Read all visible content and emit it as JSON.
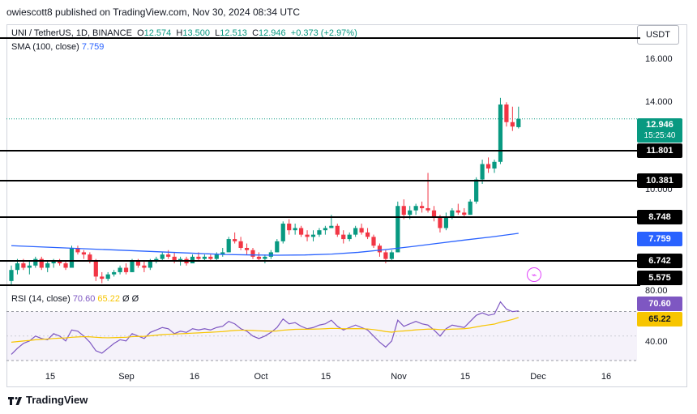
{
  "header": {
    "text": "owiescott8 published on TradingView.com, Nov 30, 2024 08:34 UTC"
  },
  "symbol": {
    "name": "UNI / TetherUS, 1D, BINANCE",
    "open_label": "O",
    "open": "12.574",
    "high_label": "H",
    "high": "13.500",
    "low_label": "L",
    "low": "12.513",
    "close_label": "C",
    "close": "12.946",
    "change": "+0.373 (+2.97%)"
  },
  "sma": {
    "label": "SMA (100, close)",
    "value": "7.759"
  },
  "rsi": {
    "label": "RSI (14, close)",
    "value": "70.60",
    "signal": "65.22",
    "extra1": "Ø",
    "extra2": "Ø"
  },
  "currency": "USDT",
  "footer": {
    "brand": "TradingView"
  },
  "price_axis": [
    "16.000",
    "14.000",
    "10.000"
  ],
  "rsi_axis": [
    "80.00",
    "40.00"
  ],
  "levels": {
    "l11801": "11.801",
    "l10381": "10.381",
    "l8748": "8.748",
    "l6742": "6.742",
    "l5575": "5.575",
    "sma_tag": "7.759",
    "price_tag": "12.946",
    "countdown": "15:25:40",
    "rsi_tag": "70.60",
    "rsi_sig_tag": "65.22"
  },
  "x_axis": [
    "15",
    "Sep",
    "16",
    "Oct",
    "15",
    "Nov",
    "15",
    "Dec",
    "16"
  ],
  "colors": {
    "up": "#089981",
    "down": "#f23645",
    "sma": "#2962ff",
    "rsi": "#7e57c2",
    "rsi_ma": "#f7c500"
  },
  "chart_data": {
    "type": "candlestick",
    "title": "UNI / TetherUS, 1D, BINANCE",
    "price_range": [
      5.3,
      16.5
    ],
    "horizontal_levels": [
      11.801,
      10.381,
      8.748,
      6.742,
      5.575
    ],
    "candles": [
      {
        "o": 5.6,
        "h": 6.3,
        "l": 5.4,
        "c": 6.1
      },
      {
        "o": 6.1,
        "h": 6.6,
        "l": 5.9,
        "c": 6.4
      },
      {
        "o": 6.4,
        "h": 6.6,
        "l": 6.1,
        "c": 6.2
      },
      {
        "o": 6.2,
        "h": 6.5,
        "l": 5.9,
        "c": 6.3
      },
      {
        "o": 6.3,
        "h": 6.7,
        "l": 6.2,
        "c": 6.6
      },
      {
        "o": 6.6,
        "h": 6.7,
        "l": 6.1,
        "c": 6.2
      },
      {
        "o": 6.2,
        "h": 6.5,
        "l": 6.0,
        "c": 6.4
      },
      {
        "o": 6.4,
        "h": 6.6,
        "l": 6.2,
        "c": 6.5
      },
      {
        "o": 6.5,
        "h": 6.6,
        "l": 6.3,
        "c": 6.4
      },
      {
        "o": 6.4,
        "h": 6.5,
        "l": 6.1,
        "c": 6.2
      },
      {
        "o": 6.2,
        "h": 7.2,
        "l": 6.2,
        "c": 7.1
      },
      {
        "o": 7.1,
        "h": 7.2,
        "l": 6.8,
        "c": 6.9
      },
      {
        "o": 6.9,
        "h": 7.0,
        "l": 6.6,
        "c": 6.8
      },
      {
        "o": 6.8,
        "h": 6.9,
        "l": 6.4,
        "c": 6.5
      },
      {
        "o": 6.5,
        "h": 6.6,
        "l": 5.6,
        "c": 5.8
      },
      {
        "o": 5.8,
        "h": 6.0,
        "l": 5.5,
        "c": 5.7
      },
      {
        "o": 5.7,
        "h": 6.0,
        "l": 5.6,
        "c": 5.9
      },
      {
        "o": 5.9,
        "h": 6.1,
        "l": 5.8,
        "c": 6.0
      },
      {
        "o": 6.0,
        "h": 6.3,
        "l": 5.9,
        "c": 6.2
      },
      {
        "o": 6.2,
        "h": 6.4,
        "l": 5.9,
        "c": 6.0
      },
      {
        "o": 6.0,
        "h": 6.6,
        "l": 6.0,
        "c": 6.5
      },
      {
        "o": 6.5,
        "h": 6.6,
        "l": 6.2,
        "c": 6.3
      },
      {
        "o": 6.3,
        "h": 6.5,
        "l": 6.0,
        "c": 6.2
      },
      {
        "o": 6.2,
        "h": 6.6,
        "l": 6.1,
        "c": 6.5
      },
      {
        "o": 6.5,
        "h": 6.7,
        "l": 6.4,
        "c": 6.6
      },
      {
        "o": 6.6,
        "h": 6.9,
        "l": 6.5,
        "c": 6.8
      },
      {
        "o": 6.8,
        "h": 7.0,
        "l": 6.6,
        "c": 6.7
      },
      {
        "o": 6.7,
        "h": 6.9,
        "l": 6.4,
        "c": 6.5
      },
      {
        "o": 6.5,
        "h": 6.7,
        "l": 6.3,
        "c": 6.6
      },
      {
        "o": 6.6,
        "h": 6.7,
        "l": 6.3,
        "c": 6.4
      },
      {
        "o": 6.4,
        "h": 6.8,
        "l": 6.4,
        "c": 6.7
      },
      {
        "o": 6.7,
        "h": 6.9,
        "l": 6.5,
        "c": 6.6
      },
      {
        "o": 6.6,
        "h": 6.8,
        "l": 6.5,
        "c": 6.7
      },
      {
        "o": 6.7,
        "h": 6.8,
        "l": 6.5,
        "c": 6.6
      },
      {
        "o": 6.6,
        "h": 6.9,
        "l": 6.5,
        "c": 6.8
      },
      {
        "o": 6.8,
        "h": 7.1,
        "l": 6.7,
        "c": 6.9
      },
      {
        "o": 6.9,
        "h": 7.6,
        "l": 6.9,
        "c": 7.5
      },
      {
        "o": 7.5,
        "h": 7.8,
        "l": 7.3,
        "c": 7.4
      },
      {
        "o": 7.4,
        "h": 7.6,
        "l": 7.0,
        "c": 7.1
      },
      {
        "o": 7.1,
        "h": 7.3,
        "l": 6.8,
        "c": 7.0
      },
      {
        "o": 7.0,
        "h": 7.1,
        "l": 6.6,
        "c": 6.7
      },
      {
        "o": 6.7,
        "h": 6.9,
        "l": 6.5,
        "c": 6.6
      },
      {
        "o": 6.6,
        "h": 6.8,
        "l": 6.4,
        "c": 6.7
      },
      {
        "o": 6.7,
        "h": 7.0,
        "l": 6.6,
        "c": 6.9
      },
      {
        "o": 6.9,
        "h": 7.5,
        "l": 6.9,
        "c": 7.4
      },
      {
        "o": 7.4,
        "h": 8.3,
        "l": 7.3,
        "c": 8.2
      },
      {
        "o": 8.2,
        "h": 8.4,
        "l": 7.7,
        "c": 7.9
      },
      {
        "o": 7.9,
        "h": 8.2,
        "l": 7.7,
        "c": 8.0
      },
      {
        "o": 8.0,
        "h": 8.1,
        "l": 7.6,
        "c": 7.7
      },
      {
        "o": 7.7,
        "h": 7.9,
        "l": 7.4,
        "c": 7.6
      },
      {
        "o": 7.6,
        "h": 7.9,
        "l": 7.4,
        "c": 7.7
      },
      {
        "o": 7.7,
        "h": 8.0,
        "l": 7.6,
        "c": 7.9
      },
      {
        "o": 7.9,
        "h": 8.1,
        "l": 7.7,
        "c": 8.0
      },
      {
        "o": 8.0,
        "h": 8.6,
        "l": 8.0,
        "c": 8.1
      },
      {
        "o": 8.1,
        "h": 8.2,
        "l": 7.6,
        "c": 7.7
      },
      {
        "o": 7.7,
        "h": 7.9,
        "l": 7.3,
        "c": 7.5
      },
      {
        "o": 7.5,
        "h": 7.8,
        "l": 7.4,
        "c": 7.7
      },
      {
        "o": 7.7,
        "h": 8.1,
        "l": 7.6,
        "c": 8.0
      },
      {
        "o": 8.0,
        "h": 8.2,
        "l": 7.7,
        "c": 7.8
      },
      {
        "o": 7.8,
        "h": 8.0,
        "l": 7.5,
        "c": 7.6
      },
      {
        "o": 7.6,
        "h": 7.7,
        "l": 7.1,
        "c": 7.2
      },
      {
        "o": 7.2,
        "h": 7.3,
        "l": 6.7,
        "c": 6.9
      },
      {
        "o": 6.9,
        "h": 7.0,
        "l": 6.4,
        "c": 6.6
      },
      {
        "o": 6.6,
        "h": 7.0,
        "l": 6.5,
        "c": 6.9
      },
      {
        "o": 6.9,
        "h": 9.2,
        "l": 6.9,
        "c": 9.0
      },
      {
        "o": 9.0,
        "h": 9.3,
        "l": 8.4,
        "c": 8.6
      },
      {
        "o": 8.6,
        "h": 9.0,
        "l": 8.4,
        "c": 8.8
      },
      {
        "o": 8.8,
        "h": 9.1,
        "l": 8.6,
        "c": 9.0
      },
      {
        "o": 9.0,
        "h": 9.2,
        "l": 8.7,
        "c": 8.9
      },
      {
        "o": 8.9,
        "h": 10.5,
        "l": 8.7,
        "c": 8.8
      },
      {
        "o": 8.8,
        "h": 9.0,
        "l": 8.3,
        "c": 8.5
      },
      {
        "o": 8.5,
        "h": 8.6,
        "l": 7.8,
        "c": 8.0
      },
      {
        "o": 8.0,
        "h": 8.7,
        "l": 7.9,
        "c": 8.5
      },
      {
        "o": 8.5,
        "h": 8.9,
        "l": 8.4,
        "c": 8.8
      },
      {
        "o": 8.8,
        "h": 9.1,
        "l": 8.6,
        "c": 8.7
      },
      {
        "o": 8.7,
        "h": 8.9,
        "l": 8.5,
        "c": 8.6
      },
      {
        "o": 8.6,
        "h": 9.3,
        "l": 8.6,
        "c": 9.2
      },
      {
        "o": 9.2,
        "h": 10.3,
        "l": 9.1,
        "c": 10.2
      },
      {
        "o": 10.2,
        "h": 11.1,
        "l": 10.0,
        "c": 10.9
      },
      {
        "o": 10.9,
        "h": 11.2,
        "l": 10.5,
        "c": 10.7
      },
      {
        "o": 10.7,
        "h": 11.1,
        "l": 10.5,
        "c": 11.0
      },
      {
        "o": 11.0,
        "h": 13.9,
        "l": 10.9,
        "c": 13.6
      },
      {
        "o": 13.6,
        "h": 13.7,
        "l": 12.6,
        "c": 12.8
      },
      {
        "o": 12.8,
        "h": 13.5,
        "l": 12.4,
        "c": 12.6
      },
      {
        "o": 12.574,
        "h": 13.5,
        "l": 12.513,
        "c": 12.946
      }
    ],
    "sma_100": [
      7.2,
      7.15,
      7.1,
      7.05,
      7.0,
      6.95,
      6.9,
      6.85,
      6.8,
      6.78,
      6.77,
      6.78,
      6.82,
      6.9,
      7.02,
      7.16,
      7.31,
      7.46,
      7.6,
      7.76
    ],
    "rsi": [
      35,
      40,
      44,
      46,
      50,
      48,
      47,
      52,
      50,
      46,
      55,
      54,
      50,
      45,
      38,
      36,
      40,
      44,
      47,
      46,
      52,
      50,
      48,
      53,
      55,
      57,
      56,
      52,
      54,
      53,
      56,
      55,
      56,
      55,
      57,
      58,
      62,
      60,
      56,
      54,
      50,
      48,
      50,
      53,
      57,
      64,
      60,
      61,
      58,
      56,
      57,
      59,
      60,
      63,
      58,
      55,
      57,
      59,
      57,
      55,
      50,
      45,
      41,
      46,
      63,
      58,
      60,
      62,
      60,
      59,
      55,
      50,
      56,
      59,
      58,
      57,
      62,
      67,
      69,
      67,
      68,
      78,
      72,
      70,
      70.6
    ],
    "rsi_ma": [
      45,
      45.5,
      46,
      46.4,
      47,
      47.3,
      47.6,
      48,
      48.3,
      48.5,
      49,
      49.3,
      49.5,
      49.4,
      49,
      48.7,
      48.6,
      48.7,
      48.9,
      49,
      49.5,
      49.7,
      49.8,
      50.2,
      50.7,
      51.2,
      51.5,
      51.6,
      51.9,
      52.1,
      52.4,
      52.6,
      52.9,
      53.1,
      53.4,
      53.7,
      54.2,
      54.6,
      54.8,
      54.8,
      54.6,
      54.3,
      54.1,
      54.0,
      54.2,
      54.8,
      55.2,
      55.5,
      55.6,
      55.6,
      55.7,
      55.8,
      56,
      56.3,
      56.2,
      56.0,
      56.0,
      56.1,
      56.0,
      55.8,
      55.3,
      54.6,
      53.7,
      53.2,
      53.9,
      54.2,
      54.6,
      55.1,
      55.4,
      55.7,
      55.7,
      55.3,
      55.4,
      55.7,
      55.8,
      56.0,
      56.6,
      57.5,
      58.4,
      59.1,
      59.8,
      61.3,
      62.4,
      63.6,
      65.22
    ],
    "rsi_range": [
      30,
      85
    ],
    "rsi_band": [
      30,
      70
    ]
  }
}
